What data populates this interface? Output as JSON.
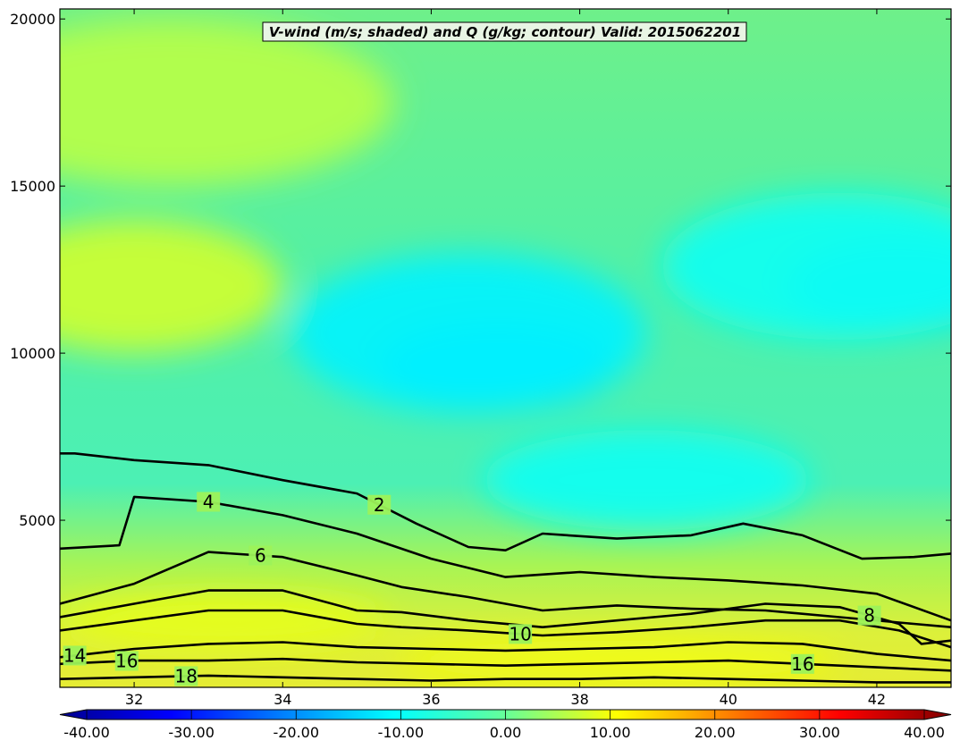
{
  "chart_data": {
    "type": "filled-contour",
    "title": "V-wind (m/s; shaded) and Q (g/kg; contour) Valid: 2015062201",
    "xlabel": "",
    "ylabel": "",
    "xlim": [
      31.0,
      43.0
    ],
    "ylim": [
      0,
      20300
    ],
    "x_ticks": [
      32,
      34,
      36,
      38,
      40,
      42
    ],
    "x_tick_labels": [
      "32",
      "34",
      "36",
      "38",
      "40",
      "42"
    ],
    "y_ticks": [
      5000,
      10000,
      15000,
      20000
    ],
    "y_tick_labels": [
      "5000",
      "10000",
      "15000",
      "20000"
    ],
    "shaded_variable": "V-wind (m/s)",
    "contour_variable": "Q (g/kg)",
    "colorbar": {
      "min": -44,
      "max": 44,
      "extend": "both",
      "ticks": [
        -40,
        -30,
        -20,
        -10,
        0,
        10,
        20,
        30,
        40
      ],
      "tick_labels": [
        "-40.00",
        "-30.00",
        "-20.00",
        "-10.00",
        "0.00",
        "10.00",
        "20.00",
        "30.00",
        "40.00"
      ],
      "colormap": "jet"
    },
    "contour_labels": [
      "2",
      "4",
      "6",
      "8",
      "10",
      "14",
      "16",
      "18",
      "16"
    ],
    "contours": [
      {
        "level": 2,
        "x": [
          31.0,
          31.2,
          32.0,
          33.0,
          34.0,
          35.0,
          35.8,
          36.5,
          37.0,
          37.5,
          38.5,
          39.5,
          40.2,
          41.0,
          41.8,
          42.5,
          43.0
        ],
        "y": [
          7000,
          7000,
          6800,
          6650,
          6200,
          5800,
          4900,
          4200,
          4100,
          4600,
          4450,
          4550,
          4900,
          4550,
          3850,
          3900,
          4000
        ]
      },
      {
        "level": 4,
        "x": [
          31.0,
          31.8,
          32.0,
          33.0,
          34.0,
          35.0,
          36.0,
          37.0,
          38.0,
          39.0,
          40.0,
          41.0,
          42.0,
          43.0
        ],
        "y": [
          4150,
          4250,
          5700,
          5550,
          5150,
          4600,
          3850,
          3300,
          3450,
          3300,
          3200,
          3050,
          2800,
          2000
        ]
      },
      {
        "level": 6,
        "x": [
          31.0,
          32.0,
          33.0,
          34.0,
          35.0,
          35.6,
          36.5,
          37.5,
          38.5,
          39.5,
          40.5,
          41.5,
          42.5,
          43.0
        ],
        "y": [
          2500,
          3100,
          4050,
          3900,
          3350,
          3000,
          2700,
          2300,
          2450,
          2350,
          2300,
          2100,
          1900,
          1800
        ]
      },
      {
        "level": 8,
        "x": [
          31.0,
          32.0,
          33.0,
          34.0,
          35.0,
          35.6,
          36.5,
          37.5,
          38.5,
          39.5,
          40.5,
          41.5,
          42.3,
          42.6,
          43.0
        ],
        "y": [
          2100,
          2500,
          2900,
          2900,
          2300,
          2250,
          2000,
          1800,
          2000,
          2200,
          2500,
          2400,
          1900,
          1300,
          1400
        ]
      },
      {
        "level": 10,
        "x": [
          31.0,
          32.0,
          33.0,
          34.0,
          35.0,
          35.6,
          36.5,
          37.5,
          38.5,
          39.5,
          40.5,
          41.5,
          42.3,
          43.0
        ],
        "y": [
          1700,
          2000,
          2300,
          2300,
          1900,
          1800,
          1700,
          1550,
          1650,
          1800,
          2000,
          2000,
          1700,
          1200
        ]
      },
      {
        "level": 14,
        "x": [
          31.0,
          32.0,
          33.0,
          34.0,
          35.0,
          36.0,
          37.0,
          38.0,
          39.0,
          40.0,
          41.0,
          42.0,
          43.0
        ],
        "y": [
          900,
          1150,
          1300,
          1350,
          1200,
          1150,
          1100,
          1150,
          1200,
          1350,
          1300,
          1000,
          800
        ]
      },
      {
        "level": 16,
        "x": [
          31.0,
          32.0,
          33.0,
          34.0,
          35.0,
          36.0,
          37.0,
          38.0,
          39.0,
          40.0,
          41.0,
          42.0,
          43.0
        ],
        "y": [
          700,
          800,
          800,
          850,
          750,
          700,
          650,
          700,
          750,
          800,
          700,
          600,
          500
        ]
      },
      {
        "level": 18,
        "x": [
          31.0,
          32.0,
          33.0,
          34.0,
          35.0,
          36.0,
          37.0,
          38.0,
          39.0,
          40.0,
          41.0,
          42.0,
          43.0
        ],
        "y": [
          250,
          300,
          350,
          300,
          250,
          200,
          250,
          250,
          300,
          250,
          200,
          150,
          150
        ]
      }
    ],
    "shaded_features": [
      {
        "label": "-15",
        "x": 36.9,
        "y": 9600,
        "rx": 1.6,
        "ry": 1300
      },
      {
        "label": "-12",
        "x": 36.5,
        "y": 10600,
        "rx": 2.4,
        "ry": 2400
      },
      {
        "label": "-15",
        "x": 42.3,
        "y": 12000,
        "rx": 1.5,
        "ry": 1400
      },
      {
        "label": "-10",
        "x": 41.5,
        "y": 12600,
        "rx": 2.4,
        "ry": 2200
      },
      {
        "label": "-10",
        "x": 38.9,
        "y": 6200,
        "rx": 2.2,
        "ry": 1500
      },
      {
        "label": "5",
        "x": 32.5,
        "y": 17500,
        "rx": 3.0,
        "ry": 2500
      },
      {
        "label": "7",
        "x": 32.0,
        "y": 12000,
        "rx": 2.0,
        "ry": 2000
      },
      {
        "label": "9",
        "x": 33.2,
        "y": 2000,
        "rx": 2.2,
        "ry": 800
      },
      {
        "label": "10",
        "x": 38.5,
        "y": 800,
        "rx": 3.0,
        "ry": 600
      }
    ]
  }
}
